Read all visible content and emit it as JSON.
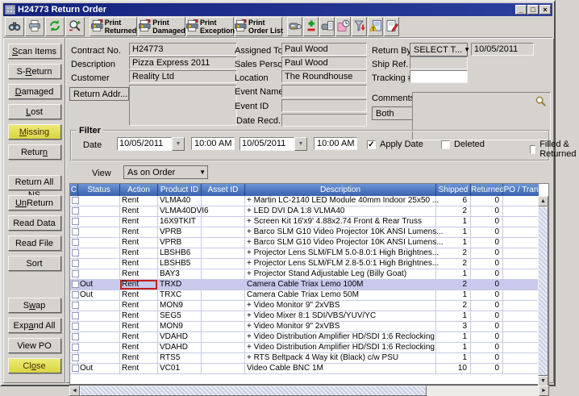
{
  "window": {
    "title": "H24773 Return Order",
    "minimize_glyph": "_",
    "maximize_glyph": "□",
    "close_glyph": "×"
  },
  "toolbar": {
    "small_left": [
      "binoculars",
      "printer",
      "refresh",
      "zoom"
    ],
    "print_buttons": [
      {
        "line1": "Print",
        "line2": "Returned"
      },
      {
        "line1": "Print",
        "line2": "Damaged"
      },
      {
        "line1": "Print",
        "line2": "Exception"
      },
      {
        "line1": "Print",
        "line2": "Order List"
      }
    ],
    "small_right": [
      "scan-return",
      "add-remove",
      "scan-file",
      "schedule-note",
      "filter",
      "exception-log",
      "edit-notes"
    ]
  },
  "sidebar": {
    "buttons": [
      {
        "label": "Scan Items",
        "u": 0
      },
      {
        "label": "S-Return",
        "u": 2
      },
      {
        "label": "Damaged",
        "u": 0
      },
      {
        "label": "Lost",
        "u": 0
      },
      {
        "label": "Missing",
        "u": 0,
        "highlight": true
      },
      {
        "label": "Return",
        "u": 5,
        "gapAfter": true
      },
      {
        "label": "Return All NS"
      },
      {
        "label": "UnReturn",
        "u": 0,
        "ulen": 2
      },
      {
        "label": "Read Data"
      },
      {
        "label": "Read File"
      },
      {
        "label": "Sort",
        "spacerAfter": true
      },
      {
        "label": "Swap",
        "u": 1
      },
      {
        "label": "Expand All",
        "u": 3
      },
      {
        "label": "View PO"
      },
      {
        "label": "Close",
        "u": 2,
        "highlight": true
      }
    ]
  },
  "form": {
    "contract_label": "Contract No.",
    "contract_value": "H24773",
    "description_label": "Description",
    "description_value": "Pizza Express 2011",
    "customer_label": "Customer",
    "customer_value": "Reality Ltd",
    "return_addr_label": "Return Addr...",
    "return_addr_text": "",
    "assigned_label": "Assigned To",
    "assigned_value": "Paul Wood",
    "sales_label": "Sales Person",
    "sales_value": "Paul Wood",
    "location_label": "Location",
    "location_value": "The Roundhouse",
    "event_name_label": "Event Name",
    "event_name_value": "",
    "event_id_label": "Event ID",
    "event_id_value": "",
    "date_recd_label": "Date Recd.",
    "date_recd_value": "",
    "return_by_label": "Return By",
    "return_by_select": "SELECT T...",
    "return_by_date": "10/05/2011",
    "ship_ref_label": "Ship Ref. #",
    "ship_ref_value": "",
    "tracking_label": "Tracking #",
    "tracking_value": "",
    "comments_label": "Comments",
    "comments_select": "Both",
    "comments_value": ""
  },
  "filter": {
    "title": "Filter",
    "date_label": "Date",
    "date_from": "10/05/2011",
    "time_from": "10:00 AM",
    "date_to": "10/05/2011",
    "time_to": "10:00 AM",
    "checkboxes": [
      {
        "label": "Apply Date",
        "checked": true
      },
      {
        "label": "Deleted",
        "checked": false
      },
      {
        "label": "Filled & Returned",
        "checked": false
      }
    ]
  },
  "view": {
    "label": "View",
    "value": "As on Order"
  },
  "table": {
    "headers": [
      "C",
      "Status",
      "Action",
      "Product ID",
      "Asset ID",
      "Description",
      "Shipped",
      "Returned",
      "PO / Tran"
    ],
    "rows": [
      {
        "status": "",
        "action": "Rent",
        "product": "VLMA40",
        "asset": "",
        "desc": "+ Martin LC-2140 LED Module 40mm Indoor 25x50 ...",
        "shipped": "6",
        "returned": "0",
        "po": ""
      },
      {
        "status": "",
        "action": "Rent",
        "product": "VLMA40DVI6",
        "asset": "",
        "desc": "+ LED DVI DA 1:8 VLMA40",
        "shipped": "2",
        "returned": "0",
        "po": ""
      },
      {
        "status": "",
        "action": "Rent",
        "product": "16X9TKIT",
        "asset": "",
        "desc": "+ Screen Kit 16'x9' 4.88x2.74 Front & Rear Truss",
        "shipped": "1",
        "returned": "0",
        "po": ""
      },
      {
        "status": "",
        "action": "Rent",
        "product": "VPRB",
        "asset": "",
        "desc": "+ Barco SLM G10 Video Projector 10K ANSI Lumens...",
        "shipped": "1",
        "returned": "0",
        "po": ""
      },
      {
        "status": "",
        "action": "Rent",
        "product": "VPRB",
        "asset": "",
        "desc": "+ Barco SLM G10 Video Projector 10K ANSI Lumens...",
        "shipped": "1",
        "returned": "0",
        "po": ""
      },
      {
        "status": "",
        "action": "Rent",
        "product": "LBSHB6",
        "asset": "",
        "desc": "+ Projector Lens SLM/FLM 5.0-8.0:1 High Brightnes...",
        "shipped": "2",
        "returned": "0",
        "po": ""
      },
      {
        "status": "",
        "action": "Rent",
        "product": "LBSHB5",
        "asset": "",
        "desc": "+ Projector Lens SLM/FLM 2.8-5.0:1 High Brightnes...",
        "shipped": "2",
        "returned": "0",
        "po": ""
      },
      {
        "status": "",
        "action": "Rent",
        "product": "BAY3",
        "asset": "",
        "desc": "+ Projector Stand Adjustable Leg (Billy Goat)",
        "shipped": "1",
        "returned": "0",
        "po": ""
      },
      {
        "status": "Out",
        "action": "Rent",
        "product": "TRXD",
        "asset": "",
        "desc": "Camera Cable Triax Lemo 100M",
        "shipped": "2",
        "returned": "0",
        "po": "",
        "selected": true
      },
      {
        "status": "Out",
        "action": "Rent",
        "product": "TRXC",
        "asset": "",
        "desc": "Camera Cable Triax Lemo 50M",
        "shipped": "1",
        "returned": "0",
        "po": ""
      },
      {
        "status": "",
        "action": "Rent",
        "product": "MON9",
        "asset": "",
        "desc": "+ Video Monitor 9\" 2xVBS",
        "shipped": "2",
        "returned": "0",
        "po": ""
      },
      {
        "status": "",
        "action": "Rent",
        "product": "SEG5",
        "asset": "",
        "desc": "+ Video Mixer 8:1 SDI/VBS/YUV/YC",
        "shipped": "1",
        "returned": "0",
        "po": ""
      },
      {
        "status": "",
        "action": "Rent",
        "product": "MON9",
        "asset": "",
        "desc": "+ Video Monitor 9\" 2xVBS",
        "shipped": "3",
        "returned": "0",
        "po": ""
      },
      {
        "status": "",
        "action": "Rent",
        "product": "VDAHD",
        "asset": "",
        "desc": "+ Video Distribution Amplifier HD/SDI 1:6 Reclocking",
        "shipped": "1",
        "returned": "0",
        "po": ""
      },
      {
        "status": "",
        "action": "Rent",
        "product": "VDAHD",
        "asset": "",
        "desc": "+ Video Distribution Amplifier HD/SDI 1:6 Reclocking",
        "shipped": "1",
        "returned": "0",
        "po": ""
      },
      {
        "status": "",
        "action": "Rent",
        "product": "RTS5",
        "asset": "",
        "desc": "+ RTS Beltpack 4 Way kit (Black) c/w PSU",
        "shipped": "1",
        "returned": "0",
        "po": ""
      },
      {
        "status": "Out",
        "action": "Rent",
        "product": "VC01",
        "asset": "",
        "desc": "Video Cable BNC 1M",
        "shipped": "10",
        "returned": "0",
        "po": ""
      }
    ]
  },
  "colors": {
    "titlebar": "#14227c",
    "header_blue": "#3a62ae",
    "selected_row": "#c9c9ee",
    "highlight_yellow": "#e2df5a",
    "focus_red": "#c22020"
  }
}
